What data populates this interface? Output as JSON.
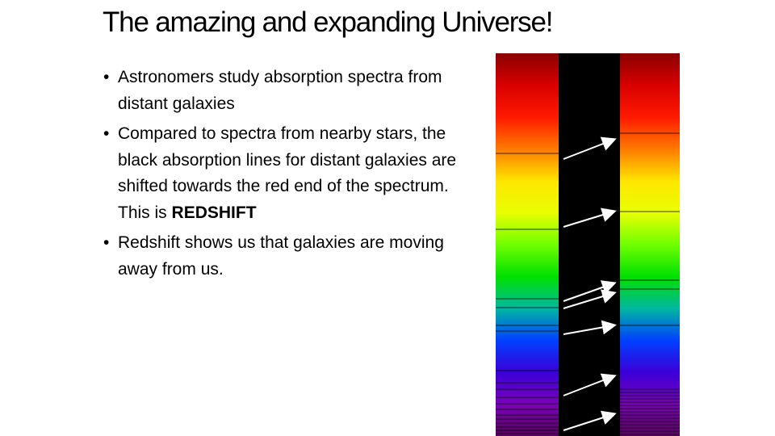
{
  "slide": {
    "title": "The amazing and expanding Universe!",
    "bullets": [
      {
        "text": "Astronomers study absorption spectra from distant galaxies",
        "emphasis": ""
      },
      {
        "text": "Compared to spectra from nearby stars, the black absorption lines for distant galaxies are shifted towards the red end of the spectrum. This is",
        "emphasis": "REDSHIFT"
      },
      {
        "text": "Redshift shows us that galaxies are moving away from us.",
        "emphasis": ""
      }
    ]
  },
  "figure": {
    "gradient_colors": [
      "#8a0000",
      "#d80000",
      "#ff1a00",
      "#ff7a00",
      "#ffe600",
      "#e8ff00",
      "#70ff00",
      "#00e000",
      "#00b8a0",
      "#0040ff",
      "#3a00d8",
      "#7a00b8",
      "#5a0060"
    ],
    "divider_color": "#000000",
    "arrow_color": "#ffffff",
    "shift_arrows": 7
  }
}
